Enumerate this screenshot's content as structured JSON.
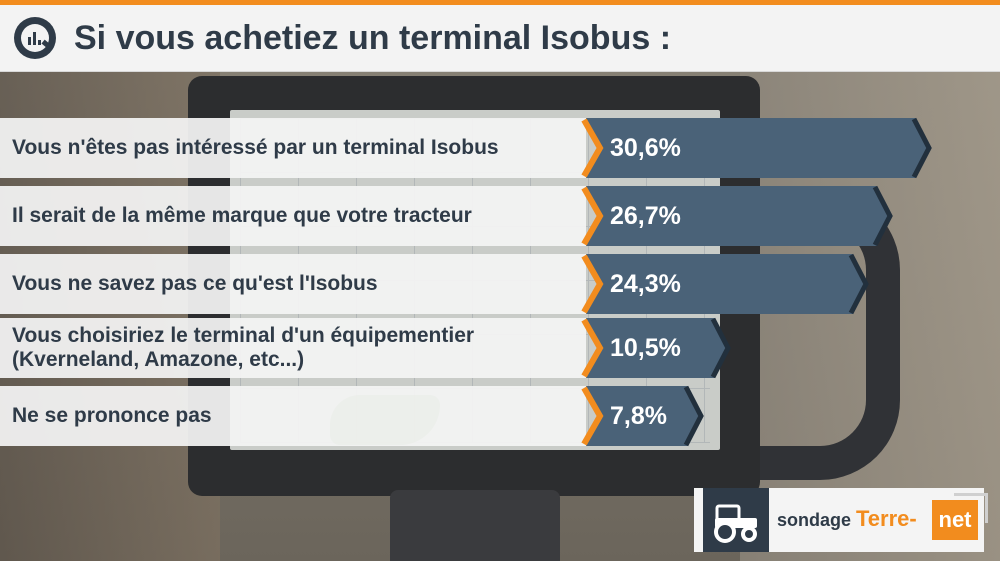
{
  "title": "Si vous achetiez un terminal Isobus :",
  "brand": {
    "prefix": "sondage",
    "name_part1": "Terre-",
    "name_part2": "net"
  },
  "colors": {
    "bar": "#4a6278",
    "bar_dark": "#22303d",
    "accent": "#f28c1e",
    "text": "#2f3b48"
  },
  "chart_data": {
    "type": "bar",
    "orientation": "horizontal",
    "title": "Si vous achetiez un terminal Isobus :",
    "categories": [
      "Vous n'êtes pas intéressé par un terminal Isobus",
      "Il serait de la même marque que votre tracteur",
      "Vous ne savez pas ce qu'est l'Isobus",
      "Vous choisiriez le terminal d'un équipementier\n(Kverneland, Amazone, etc...)",
      "Ne se prononce pas"
    ],
    "values": [
      30.6,
      26.7,
      24.3,
      10.5,
      7.8
    ],
    "value_labels": [
      "30,6%",
      "26,7%",
      "24,3%",
      "10,5%",
      "7,8%"
    ],
    "unit": "%"
  }
}
